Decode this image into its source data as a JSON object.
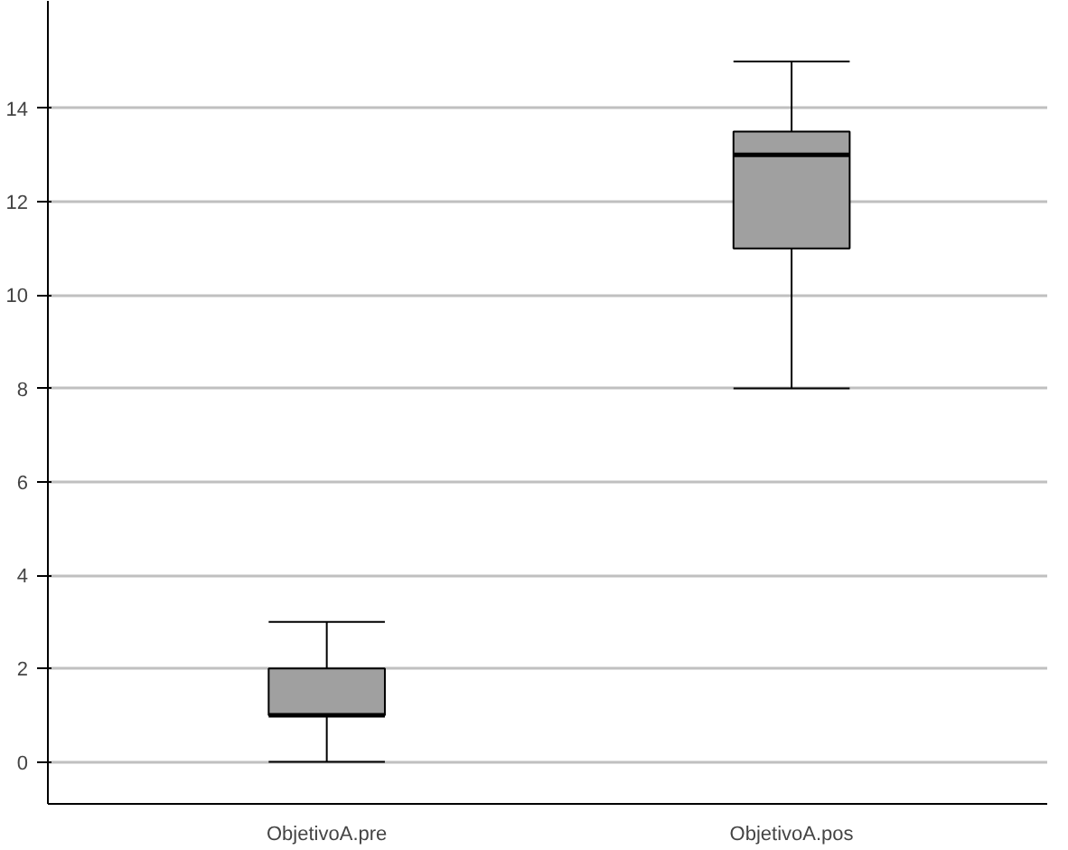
{
  "chart_data": {
    "type": "box",
    "categories": [
      "ObjetivoA.pre",
      "ObjetivoA.pos"
    ],
    "boxes": [
      {
        "low": 0,
        "q1": 1,
        "median": 1,
        "q3": 2,
        "high": 3
      },
      {
        "low": 8,
        "q1": 11,
        "median": 13,
        "q3": 13.5,
        "high": 15
      }
    ],
    "color": "#a0a0a0",
    "ylim": [
      -0.9,
      16.3
    ],
    "yticks": [
      0,
      2,
      4,
      6,
      8,
      10,
      12,
      14
    ],
    "grid": "y"
  }
}
